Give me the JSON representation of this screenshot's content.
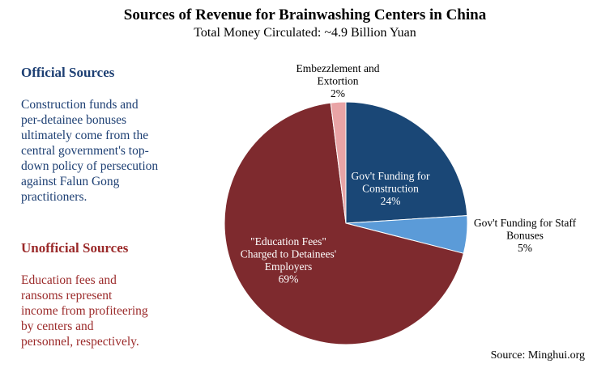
{
  "chart_data": {
    "type": "pie",
    "title": "Sources of Revenue for Brainwashing Centers in China",
    "subtitle": "Total Money Circulated: ~4.9 Billion Yuan",
    "slices": [
      {
        "label_lines": [
          "Gov't Funding for",
          "Construction"
        ],
        "value": 24,
        "value_label": "24%",
        "color": "#1a4776",
        "label_color": "#ffffff"
      },
      {
        "label_lines": [
          "Gov't Funding for Staff",
          "Bonuses"
        ],
        "value": 5,
        "value_label": "5%",
        "color": "#5b9bd8",
        "label_color": "#000000"
      },
      {
        "label_lines": [
          "\"Education Fees\"",
          "Charged to Detainees'",
          "Employers"
        ],
        "value": 69,
        "value_label": "69%",
        "color": "#7e2a2e",
        "label_color": "#ffffff"
      },
      {
        "label_lines": [
          "Embezzlement and",
          "Extortion"
        ],
        "value": 2,
        "value_label": "2%",
        "color": "#e9a4a6",
        "label_color": "#000000"
      }
    ]
  },
  "sidebar": {
    "official": {
      "heading": "Official Sources",
      "lines": [
        "Construction funds and",
        "per-detainee bonuses",
        "ultimately come from the",
        "central government's top-",
        "down policy of persecution",
        "against Falun Gong",
        "practitioners."
      ]
    },
    "unofficial": {
      "heading": "Unofficial Sources",
      "lines": [
        "Education fees and",
        "ransoms represent",
        "income from profiteering",
        "by centers and",
        "personnel, respectively."
      ]
    }
  },
  "source": "Source: Minghui.org"
}
